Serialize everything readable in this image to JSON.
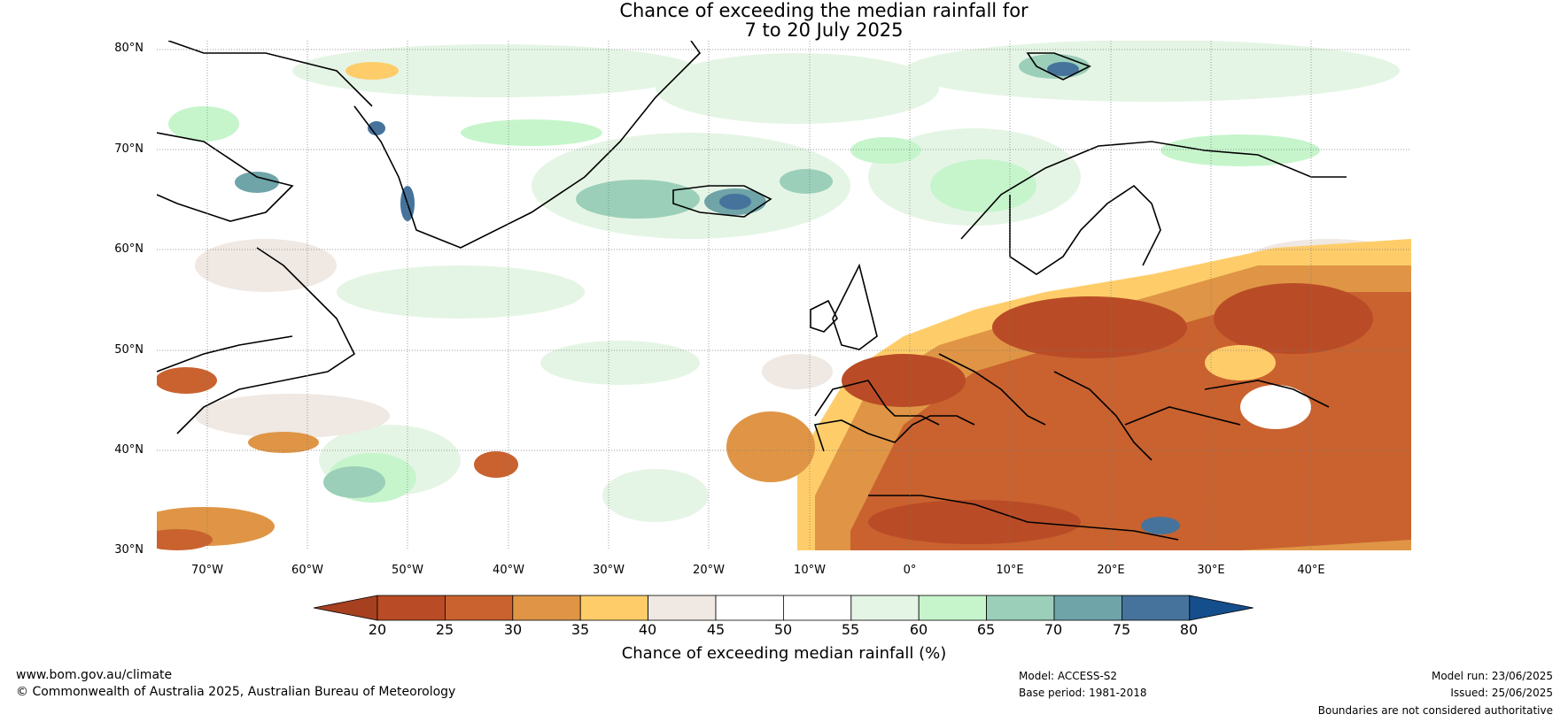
{
  "title": {
    "line1": "Chance of exceeding the median rainfall for",
    "line2": "7 to 20 July 2025"
  },
  "map": {
    "lat_labels": [
      "80°N",
      "70°N",
      "60°N",
      "50°N",
      "40°N",
      "30°N"
    ],
    "lon_labels": [
      "70°W",
      "60°W",
      "50°W",
      "40°W",
      "30°W",
      "20°W",
      "10°W",
      "0°",
      "10°E",
      "20°E",
      "30°E",
      "40°E"
    ],
    "extent": {
      "lon_min": -75,
      "lon_max": 50,
      "lat_min": 30,
      "lat_max": 81
    }
  },
  "colorbar": {
    "ticks": [
      "20",
      "25",
      "30",
      "35",
      "40",
      "45",
      "50",
      "55",
      "60",
      "65",
      "70",
      "75",
      "80"
    ],
    "colors": [
      "#a6401f",
      "#b94c26",
      "#c9622f",
      "#df9545",
      "#fecd6a",
      "#efe8e3",
      "#ffffff",
      "#ffffff",
      "#e5f5e5",
      "#c6f5cc",
      "#9bcfb9",
      "#6fa4a9",
      "#45739c",
      "#144e8c"
    ],
    "label": "Chance of exceeding median rainfall (%)"
  },
  "footer": {
    "website": "www.bom.gov.au/climate",
    "copyright": "© Commonwealth of Australia 2025, Australian Bureau of Meteorology",
    "model": "Model: ACCESS-S2",
    "base_period": "Base period: 1981-2018",
    "model_run": "Model run: 23/06/2025",
    "issued": "Issued: 25/06/2025",
    "disclaimer": "Boundaries are not considered authoritative"
  }
}
